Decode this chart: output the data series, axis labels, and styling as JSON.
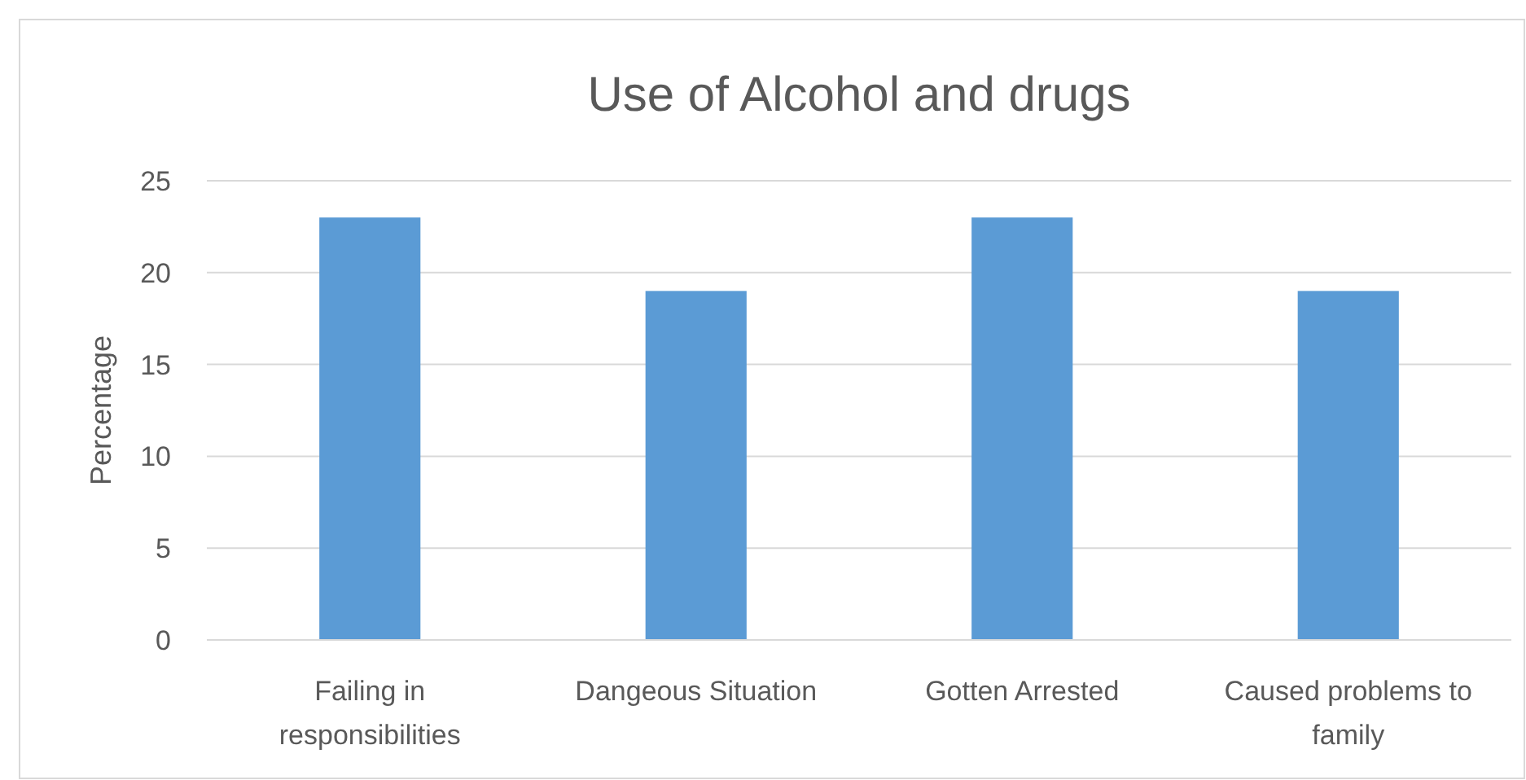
{
  "chart_data": {
    "type": "bar",
    "title": "Use of Alcohol and drugs",
    "ylabel": "Percentage",
    "categories": [
      "Failing in responsibilities",
      "Dangeous Situation",
      "Gotten Arrested",
      "Caused problems to family"
    ],
    "values": [
      23,
      19,
      23,
      19
    ],
    "color": "#5b9bd5",
    "ylim": [
      0,
      25
    ],
    "yticks": [
      0,
      5,
      10,
      15,
      20,
      25
    ],
    "grid": "y"
  }
}
